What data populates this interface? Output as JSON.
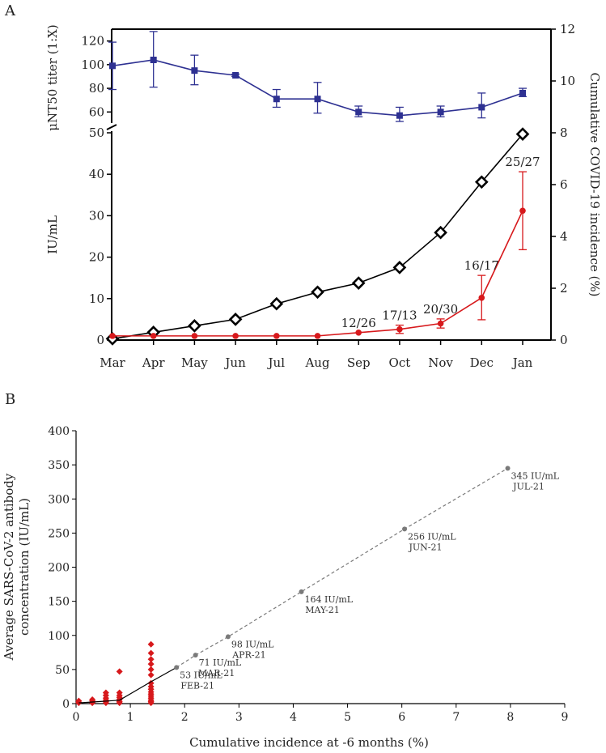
{
  "chart_data": [
    {
      "panel": "A",
      "type": "line",
      "months": [
        "Mar",
        "Apr",
        "May",
        "Jun",
        "Jul",
        "Aug",
        "Sep",
        "Oct",
        "Nov",
        "Dec",
        "Jan"
      ],
      "top_axis": {
        "ylabel": "μNT50 titer (1:X)",
        "ylim": [
          52,
          130
        ],
        "ticks": [
          60,
          80,
          100,
          120
        ]
      },
      "bottom_axis": {
        "ylabel": "IU/mL",
        "ylim": [
          0,
          50
        ],
        "ticks": [
          0,
          10,
          20,
          30,
          40,
          50
        ]
      },
      "right_axis": {
        "ylabel": "Cumulative COVID-19 incidence (%)",
        "ylim": [
          0,
          12
        ],
        "ticks": [
          0,
          2,
          4,
          6,
          8,
          10,
          12
        ]
      },
      "series": [
        {
          "name": "μNT50 titer",
          "color": "#2e3192",
          "marker": "square",
          "axis": "top",
          "values": [
            99,
            104,
            95,
            91,
            71,
            71,
            60,
            57,
            60,
            64,
            76
          ],
          "err_low": [
            79,
            81,
            83,
            90,
            64,
            59,
            56,
            52,
            56,
            55,
            73
          ],
          "err_high": [
            119,
            128,
            108,
            92,
            79,
            85,
            65,
            64,
            65,
            76,
            80
          ]
        },
        {
          "name": "Cumulative COVID-19 incidence",
          "color": "#000000",
          "marker": "diamond",
          "axis": "right",
          "values": [
            0.05,
            0.3,
            0.55,
            0.8,
            1.4,
            1.85,
            2.2,
            2.8,
            4.15,
            6.1,
            7.95
          ]
        },
        {
          "name": "IU/mL",
          "color": "#d7191c",
          "marker": "circle",
          "axis": "bottom",
          "values": [
            1,
            1,
            1,
            1,
            1,
            1,
            1.8,
            2.6,
            4,
            10.2,
            31.2
          ],
          "err_low": [
            null,
            null,
            null,
            null,
            null,
            null,
            null,
            1.6,
            2.9,
            4.9,
            21.8
          ],
          "err_high": [
            null,
            null,
            null,
            null,
            null,
            null,
            null,
            3.6,
            5.1,
            15.6,
            40.6
          ]
        }
      ],
      "annotations": [
        {
          "month": "Sep",
          "value": 1.8,
          "text": "12/26"
        },
        {
          "month": "Oct",
          "value": 3.6,
          "text": "17/13"
        },
        {
          "month": "Nov",
          "value": 5.1,
          "text": "20/30"
        },
        {
          "month": "Dec",
          "value": 15.6,
          "text": "16/17"
        },
        {
          "month": "Jan",
          "value": 40.6,
          "text": "25/27"
        }
      ]
    },
    {
      "panel": "B",
      "type": "scatter",
      "xlabel": "Cumulative incidence at -6 months (%)",
      "ylabel": "Average SARS-CoV-2 antibody concentration (IU/mL)",
      "xlim": [
        0,
        9
      ],
      "ylim": [
        0,
        400
      ],
      "xticks": [
        0,
        1,
        2,
        3,
        4,
        5,
        6,
        7,
        8,
        9
      ],
      "yticks": [
        0,
        50,
        100,
        150,
        200,
        250,
        300,
        350,
        400
      ],
      "observed": {
        "color": "#d7191c",
        "marker": "diamond",
        "points": [
          {
            "x": 0.05,
            "y": 1
          },
          {
            "x": 0.05,
            "y": 2
          },
          {
            "x": 0.05,
            "y": 4
          },
          {
            "x": 0.3,
            "y": 1
          },
          {
            "x": 0.3,
            "y": 2
          },
          {
            "x": 0.3,
            "y": 4
          },
          {
            "x": 0.3,
            "y": 6
          },
          {
            "x": 0.55,
            "y": 1
          },
          {
            "x": 0.55,
            "y": 3
          },
          {
            "x": 0.55,
            "y": 5
          },
          {
            "x": 0.55,
            "y": 8
          },
          {
            "x": 0.55,
            "y": 12
          },
          {
            "x": 0.55,
            "y": 16
          },
          {
            "x": 0.8,
            "y": 1
          },
          {
            "x": 0.8,
            "y": 3
          },
          {
            "x": 0.8,
            "y": 6
          },
          {
            "x": 0.8,
            "y": 9
          },
          {
            "x": 0.8,
            "y": 12
          },
          {
            "x": 0.8,
            "y": 16
          },
          {
            "x": 0.8,
            "y": 47
          },
          {
            "x": 1.38,
            "y": 1
          },
          {
            "x": 1.38,
            "y": 3
          },
          {
            "x": 1.38,
            "y": 5
          },
          {
            "x": 1.38,
            "y": 8
          },
          {
            "x": 1.38,
            "y": 11
          },
          {
            "x": 1.38,
            "y": 14
          },
          {
            "x": 1.38,
            "y": 17
          },
          {
            "x": 1.38,
            "y": 21
          },
          {
            "x": 1.38,
            "y": 25
          },
          {
            "x": 1.38,
            "y": 30
          },
          {
            "x": 1.38,
            "y": 42
          },
          {
            "x": 1.38,
            "y": 50
          },
          {
            "x": 1.38,
            "y": 58
          },
          {
            "x": 1.38,
            "y": 65
          },
          {
            "x": 1.38,
            "y": 74
          },
          {
            "x": 1.38,
            "y": 87
          }
        ]
      },
      "observed_trend": {
        "color": "#000000",
        "x": [
          0.05,
          0.8,
          1.38
        ],
        "y": [
          1,
          5,
          32
        ]
      },
      "projection": {
        "color": "#7a7a7a",
        "points": [
          {
            "x": 1.85,
            "y": 53,
            "value": "53 IU/mL",
            "date": "FEB-21"
          },
          {
            "x": 2.2,
            "y": 71,
            "value": "71 IU/mL",
            "date": "MAR-21"
          },
          {
            "x": 2.8,
            "y": 98,
            "value": "98 IU/mL",
            "date": "APR-21"
          },
          {
            "x": 4.15,
            "y": 164,
            "value": "164 IU/mL",
            "date": "MAY-21"
          },
          {
            "x": 6.05,
            "y": 256,
            "value": "256 IU/mL",
            "date": "JUN-21"
          },
          {
            "x": 7.95,
            "y": 345,
            "value": "345 IU/mL",
            "date": "JUL-21"
          }
        ]
      }
    }
  ]
}
